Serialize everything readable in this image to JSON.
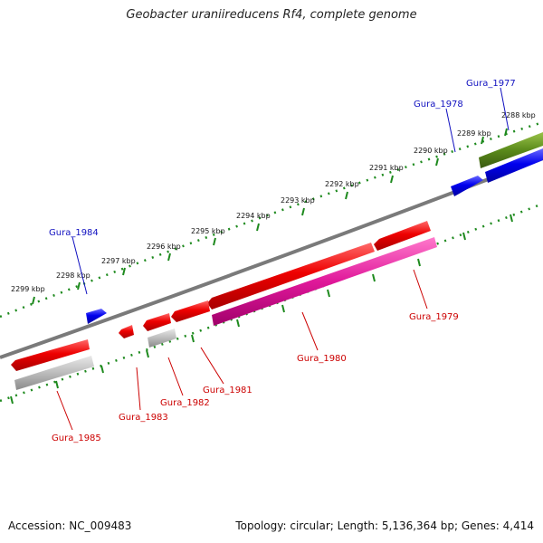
{
  "title": "Geobacter uraniireducens Rf4, complete genome",
  "footer": {
    "accession": "Accession: NC_009483",
    "topology": "Topology: circular; Length: 5,136,364 bp; Genes: 4,414"
  },
  "colors": {
    "backbone": "#7a7a7a",
    "tick": "#1e8a1e",
    "forward_gene": "#0000ee",
    "reverse_gene": "#ee0000",
    "label_forward": "#1010c0",
    "label_reverse": "#cc0000",
    "cds_gray": "#b8b8b8",
    "cds_magenta": "#e0189a",
    "cds_olive": "#5a8a1a"
  },
  "kbp_labels": [
    "2288 kbp",
    "2289 kbp",
    "2290 kbp",
    "2291 kbp",
    "2292 kbp",
    "2293 kbp",
    "2294 kbp",
    "2295 kbp",
    "2296 kbp",
    "2297 kbp",
    "2298 kbp",
    "2299 kbp"
  ],
  "gene_labels": {
    "gura_1977": "Gura_1977",
    "gura_1978": "Gura_1978",
    "gura_1979": "Gura_1979",
    "gura_1980": "Gura_1980",
    "gura_1981": "Gura_1981",
    "gura_1982": "Gura_1982",
    "gura_1983": "Gura_1983",
    "gura_1984": "Gura_1984",
    "gura_1985": "Gura_1985"
  }
}
